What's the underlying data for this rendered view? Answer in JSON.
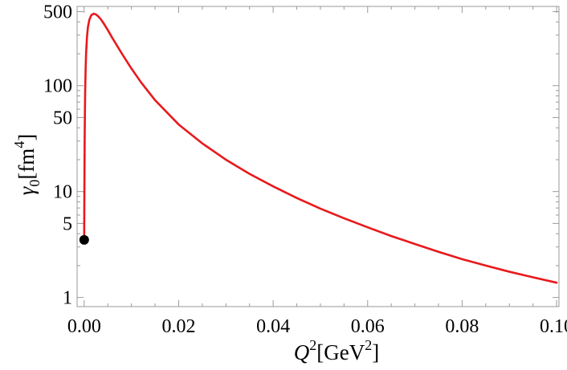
{
  "chart_data": {
    "type": "line",
    "title": "",
    "xlabel": {
      "prefix": "",
      "var": "Q",
      "sup": "2",
      "unit": "[GeV",
      "unit_sup": "2",
      "suffix": "]"
    },
    "ylabel": {
      "var": "γ",
      "sub": "0",
      "unit": "[fm",
      "unit_sup": "4",
      "suffix": "]"
    },
    "xlim": [
      -0.0015,
      0.1005
    ],
    "ylim": [
      0.82,
      560
    ],
    "yscale": "log",
    "grid": false,
    "legend": "none",
    "x_ticks": [
      {
        "value": 0.0,
        "label": "0.00"
      },
      {
        "value": 0.02,
        "label": "0.02"
      },
      {
        "value": 0.04,
        "label": "0.04"
      },
      {
        "value": 0.06,
        "label": "0.06"
      },
      {
        "value": 0.08,
        "label": "0.08"
      },
      {
        "value": 0.1,
        "label": "0.10"
      }
    ],
    "y_ticks": [
      {
        "value": 1,
        "label": "1"
      },
      {
        "value": 5,
        "label": "5"
      },
      {
        "value": 10,
        "label": "10"
      },
      {
        "value": 50,
        "label": "50"
      },
      {
        "value": 100,
        "label": "100"
      },
      {
        "value": 500,
        "label": "500"
      }
    ],
    "series": [
      {
        "color": "#e8191c",
        "x": [
          0.0,
          1e-05,
          3e-05,
          6e-05,
          0.0001,
          0.00015,
          0.0002,
          0.0003,
          0.0004,
          0.0006,
          0.0008,
          0.0011,
          0.0015,
          0.002,
          0.0025,
          0.003,
          0.0035,
          0.004,
          0.005,
          0.006,
          0.008,
          0.01,
          0.012,
          0.015,
          0.02,
          0.025,
          0.03,
          0.035,
          0.04,
          0.045,
          0.05,
          0.055,
          0.06,
          0.065,
          0.07,
          0.075,
          0.08,
          0.085,
          0.09,
          0.095,
          0.1
        ],
        "values": [
          3.5,
          5.0,
          8.0,
          15.0,
          30.0,
          55.0,
          85.0,
          140.0,
          200.0,
          290.0,
          360.0,
          420.0,
          462.0,
          478.0,
          470.0,
          450.0,
          425.0,
          395.0,
          335.0,
          280.0,
          200.0,
          145.0,
          108.0,
          73.0,
          43.0,
          28.5,
          20.0,
          14.7,
          11.2,
          8.7,
          6.9,
          5.6,
          4.6,
          3.8,
          3.2,
          2.7,
          2.3,
          2.0,
          1.75,
          1.55,
          1.38
        ]
      }
    ],
    "points": [
      {
        "x": 0.0,
        "y": 3.5,
        "color": "#000000"
      }
    ]
  }
}
